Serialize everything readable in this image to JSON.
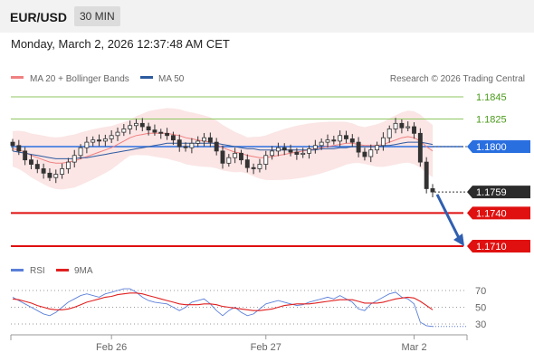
{
  "header": {
    "symbol": "EUR/USD",
    "timeframe": "30 MIN"
  },
  "datetime": "Monday, March 2, 2026 12:37:48 AM CET",
  "legend": [
    {
      "label": "MA 20 + Bollinger Bands",
      "color": "#f08080"
    },
    {
      "label": "MA 50",
      "color": "#2c5aa0"
    }
  ],
  "credit": "Research © 2026 Trading Central",
  "rsi_legend": [
    {
      "label": "RSI",
      "color": "#5b7fd9"
    },
    {
      "label": "9MA",
      "color": "#e02020"
    }
  ],
  "chart_data": [
    {
      "type": "candlestick",
      "ylim": [
        1.1695,
        1.1858
      ],
      "x_ticks": [
        {
          "label": "Feb 26",
          "x": 16
        },
        {
          "label": "Feb 27",
          "x": 41
        },
        {
          "label": "Mar 2",
          "x": 65
        }
      ],
      "price_levels": [
        {
          "label": "1.1845",
          "value": 1.1845,
          "kind": "resistance",
          "style": "green-thin"
        },
        {
          "label": "1.1825",
          "value": 1.1825,
          "kind": "resistance",
          "style": "green-thin"
        },
        {
          "label": "1.1800",
          "value": 1.18,
          "kind": "pivot",
          "style": "blue"
        },
        {
          "label": "1.1759",
          "value": 1.1759,
          "kind": "last",
          "style": "dark"
        },
        {
          "label": "1.1740",
          "value": 1.174,
          "kind": "support",
          "style": "red"
        },
        {
          "label": "1.1710",
          "value": 1.171,
          "kind": "support",
          "style": "red"
        }
      ],
      "candles_close": [
        1.1801,
        1.1796,
        1.1788,
        1.1784,
        1.178,
        1.1776,
        1.1772,
        1.1775,
        1.178,
        1.1786,
        1.1792,
        1.1799,
        1.1804,
        1.1806,
        1.1805,
        1.1807,
        1.181,
        1.1813,
        1.1816,
        1.1819,
        1.1821,
        1.1818,
        1.1815,
        1.1813,
        1.1812,
        1.181,
        1.1806,
        1.18,
        1.1799,
        1.1803,
        1.1805,
        1.1808,
        1.1804,
        1.1796,
        1.1785,
        1.179,
        1.1794,
        1.1788,
        1.1781,
        1.178,
        1.1784,
        1.1792,
        1.1796,
        1.1799,
        1.1797,
        1.1795,
        1.1793,
        1.1794,
        1.1798,
        1.1801,
        1.1804,
        1.1806,
        1.1805,
        1.181,
        1.1807,
        1.1804,
        1.1795,
        1.1791,
        1.1797,
        1.1801,
        1.1808,
        1.1816,
        1.1821,
        1.1817,
        1.1818,
        1.1812,
        1.1786,
        1.1762,
        1.1759
      ],
      "ma20": [
        1.1798,
        1.1797,
        1.1795,
        1.1792,
        1.179,
        1.1788,
        1.1786,
        1.1785,
        1.1785,
        1.1786,
        1.1787,
        1.1789,
        1.1791,
        1.1793,
        1.1795,
        1.1797,
        1.1799,
        1.1802,
        1.1805,
        1.1808,
        1.181,
        1.1811,
        1.1812,
        1.1812,
        1.1812,
        1.1812,
        1.1811,
        1.181,
        1.1808,
        1.1807,
        1.1806,
        1.1805,
        1.1804,
        1.1802,
        1.1799,
        1.1797,
        1.1795,
        1.1794,
        1.1792,
        1.1791,
        1.179,
        1.179,
        1.1791,
        1.1792,
        1.1793,
        1.1794,
        1.1795,
        1.1796,
        1.1797,
        1.1798,
        1.1799,
        1.18,
        1.1801,
        1.1802,
        1.1803,
        1.1803,
        1.1802,
        1.1801,
        1.1801,
        1.1801,
        1.1802,
        1.1804,
        1.1806,
        1.1808,
        1.1809,
        1.1808,
        1.1805,
        1.18,
        1.1796
      ],
      "ma50": [
        1.1796,
        1.1795,
        1.1794,
        1.1793,
        1.1792,
        1.1791,
        1.179,
        1.1789,
        1.1789,
        1.1789,
        1.1789,
        1.179,
        1.179,
        1.1791,
        1.1792,
        1.1793,
        1.1794,
        1.1795,
        1.1796,
        1.1797,
        1.1798,
        1.1799,
        1.18,
        1.1801,
        1.1802,
        1.1803,
        1.1803,
        1.1803,
        1.1803,
        1.1803,
        1.1803,
        1.1803,
        1.1803,
        1.1803,
        1.1802,
        1.1801,
        1.18,
        1.1799,
        1.1798,
        1.1798,
        1.1797,
        1.1797,
        1.1797,
        1.1797,
        1.1797,
        1.1797,
        1.1797,
        1.1797,
        1.1797,
        1.1797,
        1.1798,
        1.1798,
        1.1798,
        1.1799,
        1.1799,
        1.18,
        1.18,
        1.18,
        1.18,
        1.18,
        1.1801,
        1.1801,
        1.1802,
        1.1803,
        1.1804,
        1.1804,
        1.1804,
        1.1803,
        1.1802
      ],
      "forecast_arrow": {
        "from": 1.176,
        "to": 1.171
      }
    },
    {
      "type": "line",
      "title": "RSI",
      "ylim": [
        22,
        80
      ],
      "y_ticks": [
        70,
        50,
        30
      ],
      "series": [
        {
          "name": "RSI",
          "color": "#5b7fd9",
          "values": [
            62,
            58,
            54,
            50,
            46,
            42,
            40,
            44,
            50,
            56,
            60,
            64,
            66,
            64,
            62,
            66,
            68,
            70,
            72,
            72,
            68,
            62,
            58,
            56,
            55,
            54,
            50,
            46,
            50,
            56,
            58,
            60,
            54,
            46,
            40,
            46,
            50,
            44,
            40,
            42,
            48,
            54,
            56,
            58,
            56,
            54,
            52,
            53,
            56,
            58,
            60,
            62,
            60,
            64,
            60,
            56,
            48,
            46,
            54,
            58,
            62,
            66,
            68,
            62,
            60,
            54,
            32,
            28,
            27
          ]
        },
        {
          "name": "9MA",
          "color": "#e02020",
          "values": [
            60,
            59,
            57,
            55,
            52,
            50,
            48,
            47,
            47,
            48,
            50,
            53,
            56,
            58,
            60,
            62,
            63,
            65,
            66,
            67,
            67,
            66,
            64,
            62,
            60,
            58,
            56,
            54,
            53,
            53,
            53,
            54,
            54,
            53,
            51,
            50,
            49,
            48,
            47,
            46,
            46,
            47,
            48,
            50,
            52,
            53,
            54,
            54,
            54,
            55,
            56,
            57,
            58,
            59,
            59,
            59,
            57,
            55,
            55,
            55,
            56,
            58,
            60,
            61,
            62,
            61,
            57,
            52,
            47
          ]
        }
      ]
    }
  ]
}
